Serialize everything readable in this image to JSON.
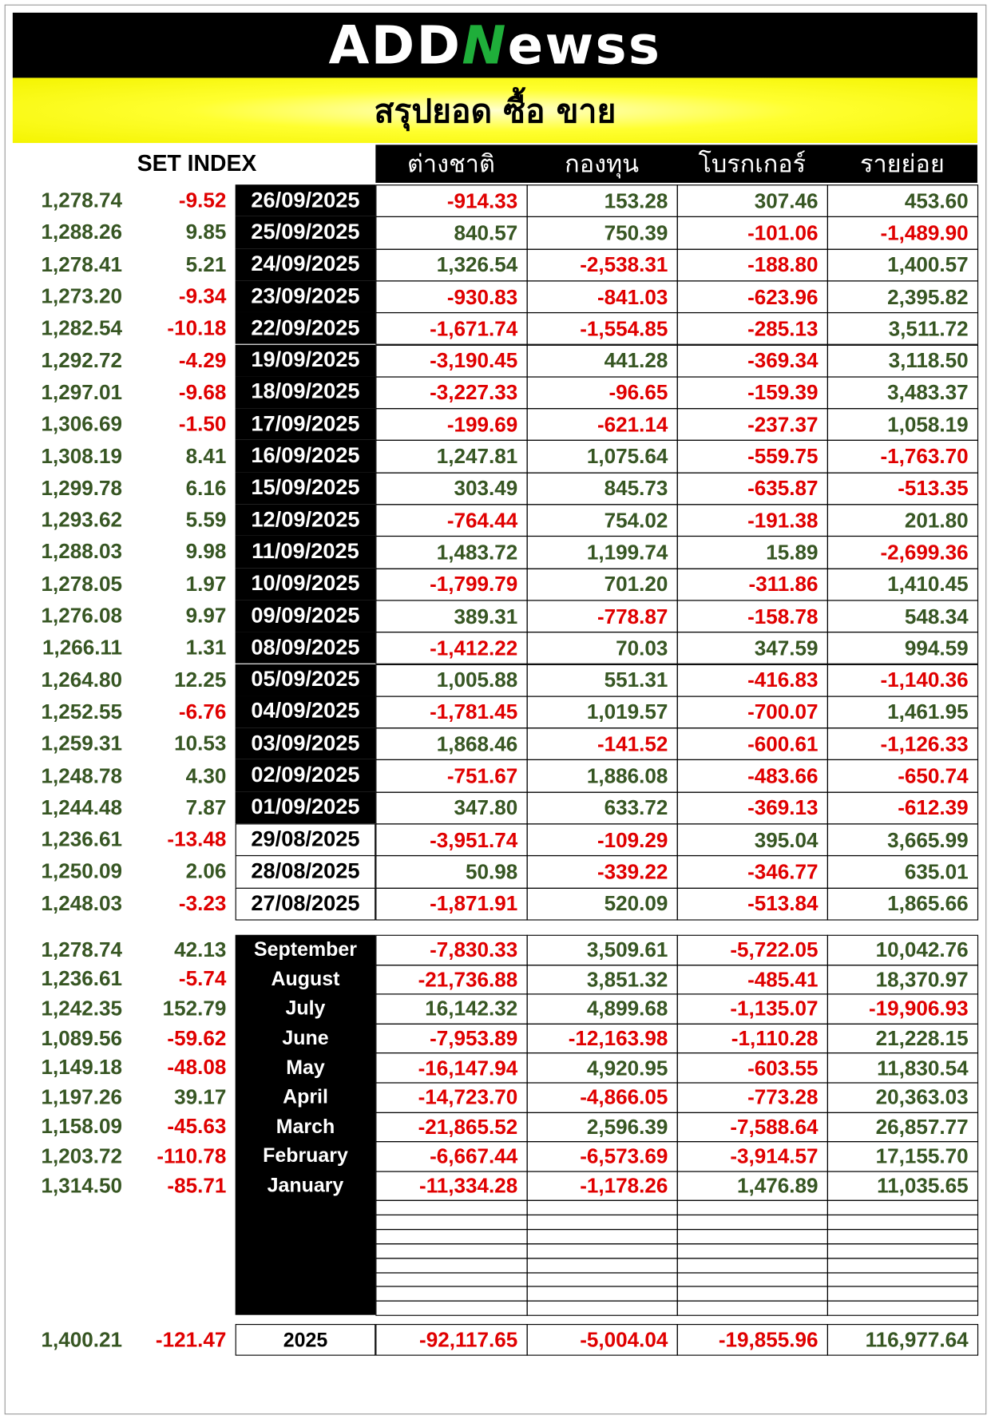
{
  "header": {
    "logo": [
      "ADD",
      "N",
      "ewss"
    ],
    "title": "สรุปยอด ซื้อ ขาย"
  },
  "columns": [
    "SET INDEX",
    "ต่างชาติ",
    "กองทุน",
    "โบรกเกอร์",
    "รายย่อย"
  ],
  "daily": [
    [
      "1,278.74",
      "-9.52",
      "26/09/2025",
      "-914.33",
      "153.28",
      "307.46",
      "453.60"
    ],
    [
      "1,288.26",
      "9.85",
      "25/09/2025",
      "840.57",
      "750.39",
      "-101.06",
      "-1,489.90"
    ],
    [
      "1,278.41",
      "5.21",
      "24/09/2025",
      "1,326.54",
      "-2,538.31",
      "-188.80",
      "1,400.57"
    ],
    [
      "1,273.20",
      "-9.34",
      "23/09/2025",
      "-930.83",
      "-841.03",
      "-623.96",
      "2,395.82"
    ],
    [
      "1,282.54",
      "-10.18",
      "22/09/2025",
      "-1,671.74",
      "-1,554.85",
      "-285.13",
      "3,511.72"
    ],
    [
      "1,292.72",
      "-4.29",
      "19/09/2025",
      "-3,190.45",
      "441.28",
      "-369.34",
      "3,118.50"
    ],
    [
      "1,297.01",
      "-9.68",
      "18/09/2025",
      "-3,227.33",
      "-96.65",
      "-159.39",
      "3,483.37"
    ],
    [
      "1,306.69",
      "-1.50",
      "17/09/2025",
      "-199.69",
      "-621.14",
      "-237.37",
      "1,058.19"
    ],
    [
      "1,308.19",
      "8.41",
      "16/09/2025",
      "1,247.81",
      "1,075.64",
      "-559.75",
      "-1,763.70"
    ],
    [
      "1,299.78",
      "6.16",
      "15/09/2025",
      "303.49",
      "845.73",
      "-635.87",
      "-513.35"
    ],
    [
      "1,293.62",
      "5.59",
      "12/09/2025",
      "-764.44",
      "754.02",
      "-191.38",
      "201.80"
    ],
    [
      "1,288.03",
      "9.98",
      "11/09/2025",
      "1,483.72",
      "1,199.74",
      "15.89",
      "-2,699.36"
    ],
    [
      "1,278.05",
      "1.97",
      "10/09/2025",
      "-1,799.79",
      "701.20",
      "-311.86",
      "1,410.45"
    ],
    [
      "1,276.08",
      "9.97",
      "09/09/2025",
      "389.31",
      "-778.87",
      "-158.78",
      "548.34"
    ],
    [
      "1,266.11",
      "1.31",
      "08/09/2025",
      "-1,412.22",
      "70.03",
      "347.59",
      "994.59"
    ],
    [
      "1,264.80",
      "12.25",
      "05/09/2025",
      "1,005.88",
      "551.31",
      "-416.83",
      "-1,140.36"
    ],
    [
      "1,252.55",
      "-6.76",
      "04/09/2025",
      "-1,781.45",
      "1,019.57",
      "-700.07",
      "1,461.95"
    ],
    [
      "1,259.31",
      "10.53",
      "03/09/2025",
      "1,868.46",
      "-141.52",
      "-600.61",
      "-1,126.33"
    ],
    [
      "1,248.78",
      "4.30",
      "02/09/2025",
      "-751.67",
      "1,886.08",
      "-483.66",
      "-650.74"
    ],
    [
      "1,244.48",
      "7.87",
      "01/09/2025",
      "347.80",
      "633.72",
      "-369.13",
      "-612.39"
    ],
    [
      "1,236.61",
      "-13.48",
      "29/08/2025",
      "-3,951.74",
      "-109.29",
      "395.04",
      "3,665.99"
    ],
    [
      "1,250.09",
      "2.06",
      "28/08/2025",
      "50.98",
      "-339.22",
      "-346.77",
      "635.01"
    ],
    [
      "1,248.03",
      "-3.23",
      "27/08/2025",
      "-1,871.91",
      "520.09",
      "-513.84",
      "1,865.66"
    ]
  ],
  "monthly": [
    [
      "1,278.74",
      "42.13",
      "September",
      "-7,830.33",
      "3,509.61",
      "-5,722.05",
      "10,042.76"
    ],
    [
      "1,236.61",
      "-5.74",
      "August",
      "-21,736.88",
      "3,851.32",
      "-485.41",
      "18,370.97"
    ],
    [
      "1,242.35",
      "152.79",
      "July",
      "16,142.32",
      "4,899.68",
      "-1,135.07",
      "-19,906.93"
    ],
    [
      "1,089.56",
      "-59.62",
      "June",
      "-7,953.89",
      "-12,163.98",
      "-1,110.28",
      "21,228.15"
    ],
    [
      "1,149.18",
      "-48.08",
      "May",
      "-16,147.94",
      "4,920.95",
      "-603.55",
      "11,830.54"
    ],
    [
      "1,197.26",
      "39.17",
      "April",
      "-14,723.70",
      "-4,866.05",
      "-773.28",
      "20,363.03"
    ],
    [
      "1,158.09",
      "-45.63",
      "March",
      "-21,865.52",
      "2,596.39",
      "-7,588.64",
      "26,857.77"
    ],
    [
      "1,203.72",
      "-110.78",
      "February",
      "-6,667.44",
      "-6,573.69",
      "-3,914.57",
      "17,155.70"
    ],
    [
      "1,314.50",
      "-85.71",
      "January",
      "-11,334.28",
      "-1,178.26",
      "1,476.89",
      "11,035.65"
    ]
  ],
  "total": [
    "1,400.21",
    "-121.47",
    "2025",
    "-92,117.65",
    "-5,004.04",
    "-19,855.96",
    "116,977.64"
  ]
}
